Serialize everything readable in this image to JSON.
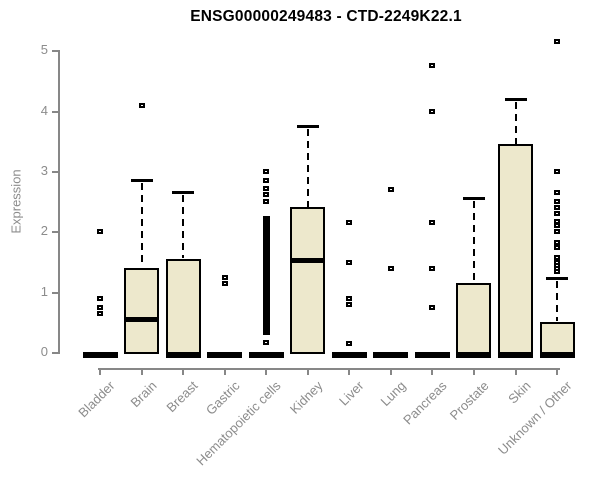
{
  "colors": {
    "background": "#FFFFFF",
    "box_fill": "#EDE8CC",
    "box_border": "#000000",
    "median": "#000000",
    "axis_line": "#878787",
    "axis_text": "#8C8C8C",
    "title_text": "#000000"
  },
  "chart_data": {
    "type": "boxplot",
    "title": "ENSG00000249483 - CTD-2249K22.1",
    "ylabel": "Expression",
    "xlabel": "",
    "ylim": [
      0,
      5.2
    ],
    "yticks": [
      0,
      1,
      2,
      3,
      4,
      5
    ],
    "grid": false,
    "legend": "none",
    "categories": [
      "Bladder",
      "Brain",
      "Breast",
      "Gastric",
      "Hematopoietic cells",
      "Kidney",
      "Liver",
      "Lung",
      "Pancreas",
      "Prostate",
      "Skin",
      "Unknown / Other"
    ],
    "boxes": [
      {
        "category": "Bladder",
        "q1": 0,
        "median": 0,
        "q3": 0,
        "whisker_low": 0,
        "whisker_high": 0,
        "outliers": [
          2.0,
          0.9,
          0.75,
          0.65
        ]
      },
      {
        "category": "Brain",
        "q1": 0,
        "median": 0.55,
        "q3": 1.4,
        "whisker_low": 0,
        "whisker_high": 2.85,
        "outliers": [
          4.1
        ]
      },
      {
        "category": "Breast",
        "q1": 0,
        "median": 0,
        "q3": 1.55,
        "whisker_low": 0,
        "whisker_high": 2.65,
        "outliers": []
      },
      {
        "category": "Gastric",
        "q1": 0,
        "median": 0,
        "q3": 0,
        "whisker_low": 0,
        "whisker_high": 0,
        "outliers": [
          1.25,
          1.15
        ]
      },
      {
        "category": "Hematopoietic cells",
        "q1": 0,
        "median": 0,
        "q3": 0,
        "whisker_low": 0,
        "whisker_high": 0,
        "outliers": [
          3.0,
          2.85,
          2.72,
          2.62,
          2.5,
          0.17
        ],
        "outlier_band": {
          "min": 0.28,
          "max": 2.25
        }
      },
      {
        "category": "Kidney",
        "q1": 0,
        "median": 1.52,
        "q3": 2.4,
        "whisker_low": 0,
        "whisker_high": 3.75,
        "outliers": []
      },
      {
        "category": "Liver",
        "q1": 0,
        "median": 0,
        "q3": 0,
        "whisker_low": 0,
        "whisker_high": 0,
        "outliers": [
          2.15,
          1.5,
          0.9,
          0.8,
          0.15
        ]
      },
      {
        "category": "Lung",
        "q1": 0,
        "median": 0,
        "q3": 0,
        "whisker_low": 0,
        "whisker_high": 0,
        "outliers": [
          2.7,
          1.4
        ]
      },
      {
        "category": "Pancreas",
        "q1": 0,
        "median": 0,
        "q3": 0,
        "whisker_low": 0,
        "whisker_high": 0,
        "outliers": [
          4.75,
          4.0,
          2.15,
          1.4,
          0.75
        ]
      },
      {
        "category": "Prostate",
        "q1": 0,
        "median": 0,
        "q3": 1.15,
        "whisker_low": 0,
        "whisker_high": 2.55,
        "outliers": []
      },
      {
        "category": "Skin",
        "q1": 0,
        "median": 0,
        "q3": 3.45,
        "whisker_low": 0,
        "whisker_high": 4.2,
        "outliers": []
      },
      {
        "category": "Unknown / Other",
        "q1": 0,
        "median": 0,
        "q3": 0.5,
        "whisker_low": 0,
        "whisker_high": 1.22,
        "outliers": [
          5.15,
          3.0,
          2.65,
          2.5,
          2.4,
          2.3,
          2.18,
          2.1,
          2.0,
          1.82,
          1.74,
          1.57,
          1.5,
          1.45,
          1.4,
          1.35
        ]
      }
    ]
  }
}
